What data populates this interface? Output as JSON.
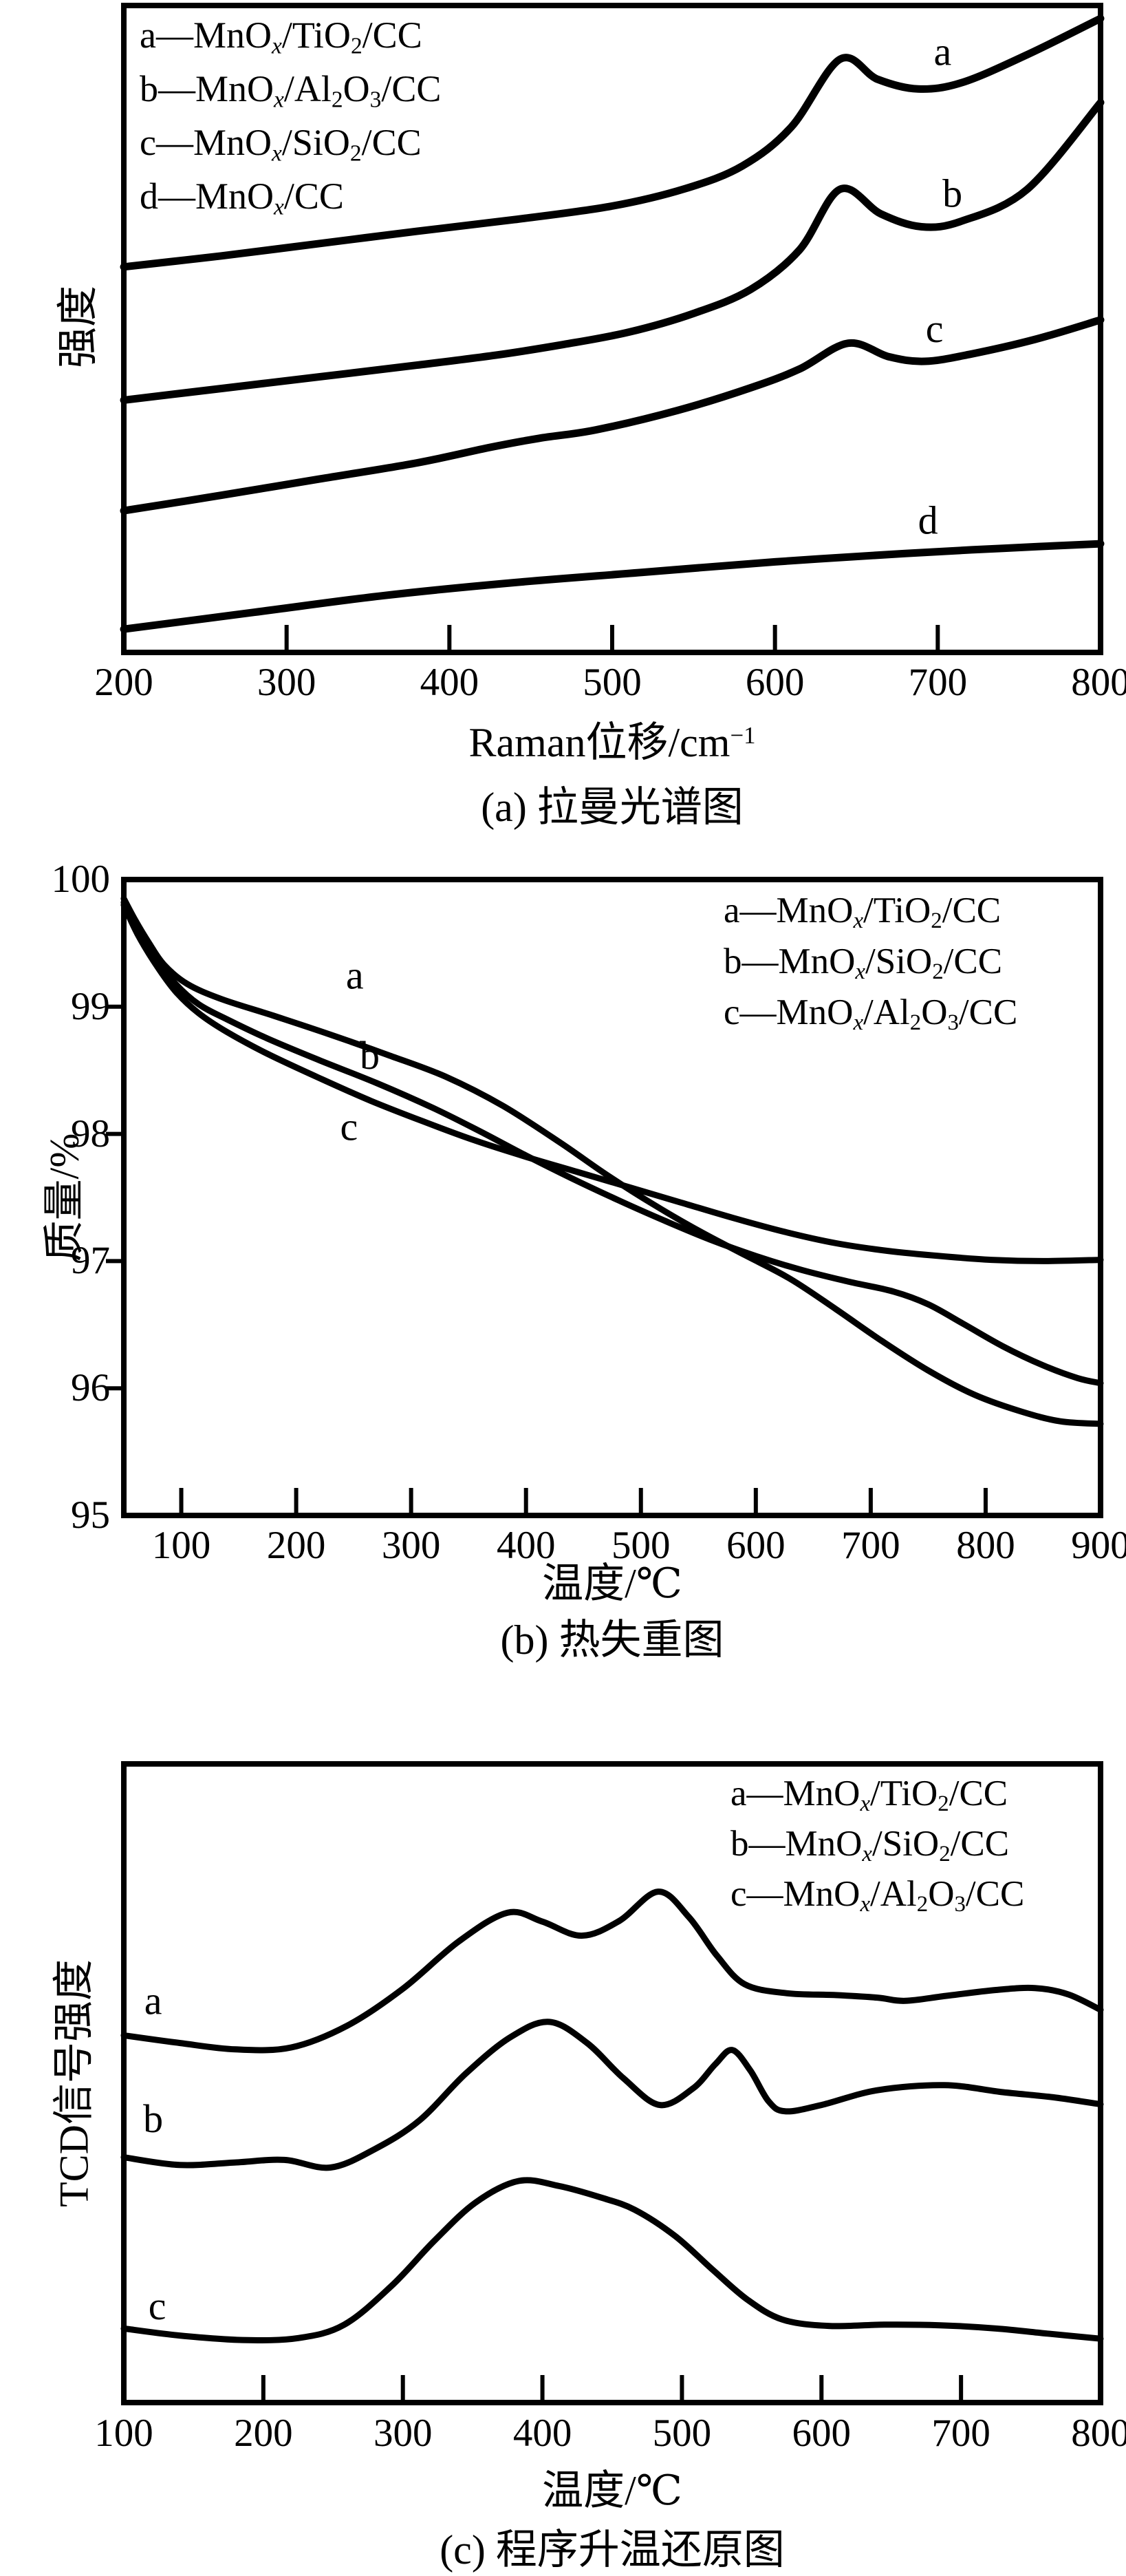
{
  "figure": {
    "background": "#ffffff",
    "ink": "#000000",
    "panel_count": 3
  },
  "chart_data": [
    {
      "type": "line",
      "id": "a",
      "title": "(a) 拉曼光谱图",
      "xlabel": "Raman位移/cm^{−1}",
      "ylabel": "强度",
      "xlim": [
        200,
        800
      ],
      "ylim": [
        0,
        1
      ],
      "x_ticks": [
        200,
        300,
        400,
        500,
        600,
        700,
        800
      ],
      "y_ticks": [],
      "grid": false,
      "legend_position": "top-left",
      "legend": [
        "a—MnO_{x}/TiO_{2}/CC",
        "b—MnO_{x}/Al_{2}O_{3}/CC",
        "c—MnO_{x}/SiO_{2}/CC",
        "d—MnO_{x}/CC"
      ],
      "series": [
        {
          "name": "a",
          "points": [
            [
              200,
              0.596
            ],
            [
              260,
              0.613
            ],
            [
              320,
              0.632
            ],
            [
              380,
              0.651
            ],
            [
              440,
              0.669
            ],
            [
              500,
              0.69
            ],
            [
              545,
              0.717
            ],
            [
              580,
              0.752
            ],
            [
              610,
              0.812
            ],
            [
              640,
              0.917
            ],
            [
              663,
              0.886
            ],
            [
              688,
              0.871
            ],
            [
              715,
              0.881
            ],
            [
              755,
              0.924
            ],
            [
              800,
              0.98
            ]
          ]
        },
        {
          "name": "b",
          "points": [
            [
              200,
              0.39
            ],
            [
              260,
              0.408
            ],
            [
              320,
              0.426
            ],
            [
              380,
              0.444
            ],
            [
              430,
              0.46
            ],
            [
              470,
              0.476
            ],
            [
              510,
              0.495
            ],
            [
              550,
              0.524
            ],
            [
              585,
              0.561
            ],
            [
              615,
              0.622
            ],
            [
              640,
              0.716
            ],
            [
              665,
              0.678
            ],
            [
              690,
              0.658
            ],
            [
              715,
              0.667
            ],
            [
              755,
              0.716
            ],
            [
              800,
              0.85
            ]
          ]
        },
        {
          "name": "c",
          "points": [
            [
              200,
              0.219
            ],
            [
              260,
              0.243
            ],
            [
              320,
              0.268
            ],
            [
              380,
              0.293
            ],
            [
              425,
              0.317
            ],
            [
              455,
              0.331
            ],
            [
              490,
              0.344
            ],
            [
              540,
              0.374
            ],
            [
              585,
              0.409
            ],
            [
              615,
              0.438
            ],
            [
              645,
              0.478
            ],
            [
              670,
              0.457
            ],
            [
              692,
              0.45
            ],
            [
              720,
              0.461
            ],
            [
              760,
              0.484
            ],
            [
              800,
              0.514
            ]
          ]
        },
        {
          "name": "d",
          "points": [
            [
              200,
              0.036
            ],
            [
              280,
              0.062
            ],
            [
              360,
              0.088
            ],
            [
              440,
              0.108
            ],
            [
              520,
              0.124
            ],
            [
              600,
              0.14
            ],
            [
              680,
              0.153
            ],
            [
              740,
              0.161
            ],
            [
              800,
              0.168
            ]
          ]
        }
      ],
      "annotations": [
        {
          "text": "a",
          "x": 703,
          "y": 0.929
        },
        {
          "text": "b",
          "x": 709,
          "y": 0.71
        },
        {
          "text": "c",
          "x": 698,
          "y": 0.501
        },
        {
          "text": "d",
          "x": 694,
          "y": 0.205
        }
      ]
    },
    {
      "type": "line",
      "id": "b",
      "title": "(b) 热失重图",
      "xlabel": "温度/℃",
      "ylabel": "质量/%",
      "xlim": [
        50,
        900
      ],
      "ylim": [
        95,
        100
      ],
      "x_ticks": [
        100,
        200,
        300,
        400,
        500,
        600,
        700,
        800,
        900
      ],
      "y_ticks": [
        100,
        99,
        98,
        97,
        96,
        95
      ],
      "y_tick_marks": [
        99,
        98,
        97,
        96
      ],
      "grid": false,
      "legend_position": "top-right",
      "legend": [
        "a—MnO_{x}/TiO_{2}/CC",
        "b—MnO_{x}/SiO_{2}/CC",
        "c—MnO_{x}/Al_{2}O_{3}/CC"
      ],
      "series": [
        {
          "name": "a",
          "points": [
            [
              50,
              99.85
            ],
            [
              60,
              99.68
            ],
            [
              72,
              99.5
            ],
            [
              85,
              99.33
            ],
            [
              105,
              99.18
            ],
            [
              135,
              99.06
            ],
            [
              180,
              98.93
            ],
            [
              230,
              98.78
            ],
            [
              280,
              98.62
            ],
            [
              330,
              98.45
            ],
            [
              380,
              98.22
            ],
            [
              430,
              97.93
            ],
            [
              470,
              97.68
            ],
            [
              510,
              97.45
            ],
            [
              550,
              97.24
            ],
            [
              590,
              97.05
            ],
            [
              630,
              96.86
            ],
            [
              670,
              96.62
            ],
            [
              710,
              96.37
            ],
            [
              750,
              96.14
            ],
            [
              790,
              95.95
            ],
            [
              830,
              95.82
            ],
            [
              865,
              95.74
            ],
            [
              900,
              95.72
            ]
          ]
        },
        {
          "name": "b",
          "points": [
            [
              50,
              99.82
            ],
            [
              62,
              99.6
            ],
            [
              78,
              99.38
            ],
            [
              95,
              99.18
            ],
            [
              115,
              99.02
            ],
            [
              140,
              98.9
            ],
            [
              175,
              98.75
            ],
            [
              220,
              98.58
            ],
            [
              270,
              98.4
            ],
            [
              320,
              98.2
            ],
            [
              360,
              98.02
            ],
            [
              400,
              97.83
            ],
            [
              440,
              97.65
            ],
            [
              480,
              97.48
            ],
            [
              520,
              97.32
            ],
            [
              560,
              97.17
            ],
            [
              600,
              97.04
            ],
            [
              640,
              96.93
            ],
            [
              680,
              96.84
            ],
            [
              720,
              96.76
            ],
            [
              750,
              96.66
            ],
            [
              780,
              96.51
            ],
            [
              815,
              96.33
            ],
            [
              850,
              96.18
            ],
            [
              880,
              96.08
            ],
            [
              900,
              96.04
            ]
          ]
        },
        {
          "name": "c",
          "points": [
            [
              50,
              99.8
            ],
            [
              62,
              99.57
            ],
            [
              78,
              99.33
            ],
            [
              95,
              99.12
            ],
            [
              115,
              98.95
            ],
            [
              140,
              98.8
            ],
            [
              175,
              98.63
            ],
            [
              220,
              98.44
            ],
            [
              265,
              98.26
            ],
            [
              310,
              98.1
            ],
            [
              355,
              97.95
            ],
            [
              400,
              97.82
            ],
            [
              445,
              97.7
            ],
            [
              490,
              97.58
            ],
            [
              535,
              97.46
            ],
            [
              580,
              97.34
            ],
            [
              625,
              97.23
            ],
            [
              670,
              97.14
            ],
            [
              715,
              97.08
            ],
            [
              760,
              97.04
            ],
            [
              805,
              97.01
            ],
            [
              850,
              97.0
            ],
            [
              900,
              97.01
            ]
          ]
        }
      ],
      "annotations": [
        {
          "text": "a",
          "x": 251,
          "y": 99.25
        },
        {
          "text": "b",
          "x": 264,
          "y": 98.62
        },
        {
          "text": "c",
          "x": 246,
          "y": 98.06
        }
      ]
    },
    {
      "type": "line",
      "id": "c",
      "title": "(c) 程序升温还原图",
      "xlabel": "温度/℃",
      "ylabel": "TCD信号强度",
      "xlim": [
        100,
        800
      ],
      "ylim": [
        0,
        1
      ],
      "x_ticks": [
        100,
        200,
        300,
        400,
        500,
        600,
        700,
        800
      ],
      "y_ticks": [],
      "grid": false,
      "legend_position": "top-right",
      "legend": [
        "a—MnO_{x}/TiO_{2}/CC",
        "b—MnO_{x}/SiO_{2}/CC",
        "c—MnO_{x}/Al_{2}O_{3}/CC"
      ],
      "series": [
        {
          "name": "a",
          "points": [
            [
              100,
              0.575
            ],
            [
              140,
              0.563
            ],
            [
              180,
              0.553
            ],
            [
              220,
              0.556
            ],
            [
              260,
              0.59
            ],
            [
              300,
              0.648
            ],
            [
              340,
              0.722
            ],
            [
              375,
              0.767
            ],
            [
              400,
              0.753
            ],
            [
              428,
              0.731
            ],
            [
              455,
              0.754
            ],
            [
              483,
              0.8
            ],
            [
              505,
              0.76
            ],
            [
              525,
              0.7
            ],
            [
              545,
              0.655
            ],
            [
              575,
              0.641
            ],
            [
              610,
              0.638
            ],
            [
              640,
              0.634
            ],
            [
              660,
              0.629
            ],
            [
              690,
              0.637
            ],
            [
              725,
              0.646
            ],
            [
              753,
              0.649
            ],
            [
              777,
              0.639
            ],
            [
              800,
              0.615
            ]
          ]
        },
        {
          "name": "b",
          "points": [
            [
              100,
              0.384
            ],
            [
              140,
              0.372
            ],
            [
              180,
              0.376
            ],
            [
              215,
              0.38
            ],
            [
              248,
              0.368
            ],
            [
              280,
              0.397
            ],
            [
              312,
              0.442
            ],
            [
              345,
              0.515
            ],
            [
              377,
              0.572
            ],
            [
              405,
              0.596
            ],
            [
              432,
              0.563
            ],
            [
              458,
              0.508
            ],
            [
              484,
              0.466
            ],
            [
              508,
              0.492
            ],
            [
              524,
              0.53
            ],
            [
              536,
              0.552
            ],
            [
              549,
              0.52
            ],
            [
              562,
              0.472
            ],
            [
              574,
              0.456
            ],
            [
              600,
              0.466
            ],
            [
              640,
              0.489
            ],
            [
              688,
              0.497
            ],
            [
              730,
              0.486
            ],
            [
              766,
              0.478
            ],
            [
              800,
              0.467
            ]
          ]
        },
        {
          "name": "c",
          "points": [
            [
              100,
              0.116
            ],
            [
              140,
              0.105
            ],
            [
              185,
              0.098
            ],
            [
              225,
              0.101
            ],
            [
              258,
              0.122
            ],
            [
              292,
              0.183
            ],
            [
              322,
              0.252
            ],
            [
              352,
              0.313
            ],
            [
              383,
              0.347
            ],
            [
              412,
              0.339
            ],
            [
              442,
              0.321
            ],
            [
              466,
              0.302
            ],
            [
              495,
              0.261
            ],
            [
              522,
              0.208
            ],
            [
              547,
              0.161
            ],
            [
              572,
              0.13
            ],
            [
              605,
              0.12
            ],
            [
              645,
              0.122
            ],
            [
              685,
              0.121
            ],
            [
              725,
              0.116
            ],
            [
              762,
              0.108
            ],
            [
              800,
              0.1
            ]
          ]
        }
      ],
      "annotations": [
        {
          "text": "a",
          "x": 121,
          "y": 0.63
        },
        {
          "text": "b",
          "x": 121,
          "y": 0.445
        },
        {
          "text": "c",
          "x": 124,
          "y": 0.152
        }
      ]
    }
  ]
}
